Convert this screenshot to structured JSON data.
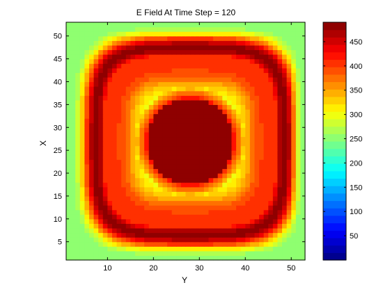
{
  "chart_data": {
    "type": "heatmap",
    "title": "E Field At Time Step = 120",
    "xlabel": "Y",
    "ylabel": "X",
    "xlim": [
      1,
      53
    ],
    "ylim": [
      1,
      53
    ],
    "x_ticks": [
      10,
      20,
      30,
      40,
      50
    ],
    "y_ticks": [
      5,
      10,
      15,
      20,
      25,
      30,
      35,
      40,
      45,
      50
    ],
    "grid": false,
    "colorbar": {
      "range": [
        0,
        490
      ],
      "ticks": [
        50,
        100,
        150,
        200,
        250,
        300,
        350,
        400,
        450
      ]
    },
    "colors": {
      "band_0": "#00008f",
      "band_1": "#0000ff",
      "band_2": "#0080ff",
      "band_3": "#00ffff",
      "band_4": "#80ff80",
      "band_5": "#ffff00",
      "band_6": "#ff8000",
      "band_7": "#ff0000",
      "band_8": "#800000"
    }
  }
}
